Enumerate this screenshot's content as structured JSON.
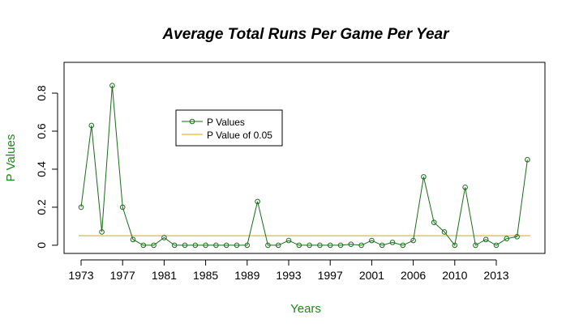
{
  "chart_data": {
    "type": "line",
    "title": "Average Total Runs Per Game Per Year",
    "x_label": "Years",
    "y_label": "P Values",
    "categories": [
      "1973",
      null,
      null,
      null,
      "1977",
      null,
      null,
      null,
      "1981",
      null,
      null,
      null,
      "1985",
      null,
      null,
      null,
      "1989",
      null,
      null,
      null,
      "1993",
      null,
      null,
      null,
      "1997",
      null,
      null,
      null,
      "2001",
      null,
      null,
      null,
      "2006",
      null,
      null,
      null,
      "2010",
      null,
      null,
      null,
      "2013",
      null,
      null,
      null
    ],
    "series": [
      {
        "name": "P Values",
        "color": "#1a6b1a",
        "values": [
          0.2,
          0.63,
          0.07,
          0.84,
          0.2,
          0.03,
          0,
          0,
          0.04,
          0,
          0,
          0,
          0,
          0,
          0,
          0,
          0,
          0.23,
          0,
          0,
          0.025,
          0,
          0,
          0,
          0,
          0,
          0.005,
          0,
          0.025,
          0,
          0.015,
          0,
          0.025,
          0.36,
          0.12,
          0.07,
          0,
          0.305,
          0,
          0.03,
          0,
          0.035,
          0.045,
          0.45
        ]
      }
    ],
    "reference_line": {
      "name": "P Value of 0.05",
      "value": 0.05,
      "color": "#e0a400"
    },
    "ylim": [
      -0.043,
      0.962
    ],
    "yticks": [
      0,
      0.2,
      0.4,
      0.6,
      0.8
    ]
  }
}
